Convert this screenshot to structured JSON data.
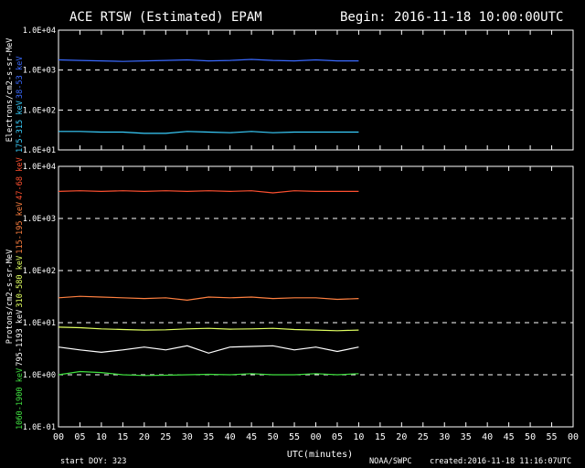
{
  "title": "ACE RTSW (Estimated) EPAM",
  "begin": "Begin: 2016-11-18 10:00:00UTC",
  "footer": {
    "doy": "start DOY:  323",
    "source": "NOAA/SWPC",
    "created": "created:2016-11-18 11:16:07UTC"
  },
  "chart_data": [
    {
      "type": "line",
      "ylabel": "Electrons/cm2-s-sr-MeV",
      "log_scale": true,
      "grid": true,
      "xlim": [
        0,
        120
      ],
      "ylim": [
        10,
        10000
      ],
      "yticks": [
        {
          "value": 10,
          "label": "1.0E+01"
        },
        {
          "value": 100,
          "label": "1.0E+02"
        },
        {
          "value": 1000,
          "label": "1.0E+03"
        },
        {
          "value": 10000,
          "label": "1.0E+04"
        }
      ],
      "x": [
        0,
        5,
        10,
        15,
        20,
        25,
        30,
        35,
        40,
        45,
        50,
        55,
        60,
        65,
        70
      ],
      "series": [
        {
          "name": "175-315 keV",
          "color": "#3ad0ff",
          "values": [
            29,
            29,
            28,
            28,
            26,
            26,
            29,
            28,
            27,
            29,
            27,
            28,
            28,
            28,
            28
          ]
        },
        {
          "name": "38-53 keV",
          "color": "#3a6aff",
          "values": [
            1800,
            1750,
            1700,
            1650,
            1700,
            1750,
            1800,
            1700,
            1750,
            1850,
            1750,
            1700,
            1800,
            1700,
            1700
          ]
        }
      ]
    },
    {
      "type": "line",
      "ylabel": "Protons/cm2-s-sr-MeV",
      "xlabel": "UTC(minutes)",
      "log_scale": true,
      "grid": true,
      "xlim": [
        0,
        120
      ],
      "ylim": [
        0.1,
        10000
      ],
      "xticks": [
        {
          "value": 0,
          "label": "00"
        },
        {
          "value": 5,
          "label": "05"
        },
        {
          "value": 10,
          "label": "10"
        },
        {
          "value": 15,
          "label": "15"
        },
        {
          "value": 20,
          "label": "20"
        },
        {
          "value": 25,
          "label": "25"
        },
        {
          "value": 30,
          "label": "30"
        },
        {
          "value": 35,
          "label": "35"
        },
        {
          "value": 40,
          "label": "40"
        },
        {
          "value": 45,
          "label": "45"
        },
        {
          "value": 50,
          "label": "50"
        },
        {
          "value": 55,
          "label": "55"
        },
        {
          "value": 60,
          "label": "00"
        },
        {
          "value": 65,
          "label": "05"
        },
        {
          "value": 70,
          "label": "10"
        },
        {
          "value": 75,
          "label": "15"
        },
        {
          "value": 80,
          "label": "20"
        },
        {
          "value": 85,
          "label": "25"
        },
        {
          "value": 90,
          "label": "30"
        },
        {
          "value": 95,
          "label": "35"
        },
        {
          "value": 100,
          "label": "40"
        },
        {
          "value": 105,
          "label": "45"
        },
        {
          "value": 110,
          "label": "50"
        },
        {
          "value": 115,
          "label": "55"
        },
        {
          "value": 120,
          "label": "00"
        }
      ],
      "yticks": [
        {
          "value": 0.1,
          "label": "1.0E-01"
        },
        {
          "value": 1,
          "label": "1.0E+00"
        },
        {
          "value": 10,
          "label": "1.0E+01"
        },
        {
          "value": 100,
          "label": "1.0E+02"
        },
        {
          "value": 1000,
          "label": "1.0E+03"
        },
        {
          "value": 10000,
          "label": "1.0E+04"
        }
      ],
      "x": [
        0,
        5,
        10,
        15,
        20,
        25,
        30,
        35,
        40,
        45,
        50,
        55,
        60,
        65,
        70
      ],
      "series": [
        {
          "name": "1060-1900 keV",
          "color": "#40e040",
          "values": [
            1.0,
            1.15,
            1.1,
            1.0,
            0.97,
            0.98,
            1.0,
            1.02,
            1.0,
            1.05,
            1.0,
            1.0,
            1.05,
            1.0,
            1.05
          ]
        },
        {
          "name": "795-1193 keV",
          "color": "#ffffff",
          "values": [
            3.4,
            3.0,
            2.7,
            3.0,
            3.4,
            3.0,
            3.6,
            2.6,
            3.4,
            3.5,
            3.6,
            3.0,
            3.4,
            2.8,
            3.4
          ]
        },
        {
          "name": "310-580 keV",
          "color": "#e0ff60",
          "values": [
            8.2,
            8.0,
            7.6,
            7.4,
            7.2,
            7.3,
            7.6,
            7.8,
            7.5,
            7.6,
            7.8,
            7.4,
            7.2,
            7.0,
            7.2
          ]
        },
        {
          "name": "115-195 keV",
          "color": "#ff8040",
          "values": [
            30,
            32,
            31,
            30,
            29,
            30,
            27,
            31,
            30,
            31,
            29,
            30,
            30,
            28,
            29
          ]
        },
        {
          "name": "47-68 keV",
          "color": "#ff5030",
          "values": [
            3300,
            3400,
            3300,
            3400,
            3300,
            3400,
            3300,
            3400,
            3300,
            3400,
            3100,
            3400,
            3300,
            3300,
            3300
          ]
        }
      ]
    }
  ]
}
